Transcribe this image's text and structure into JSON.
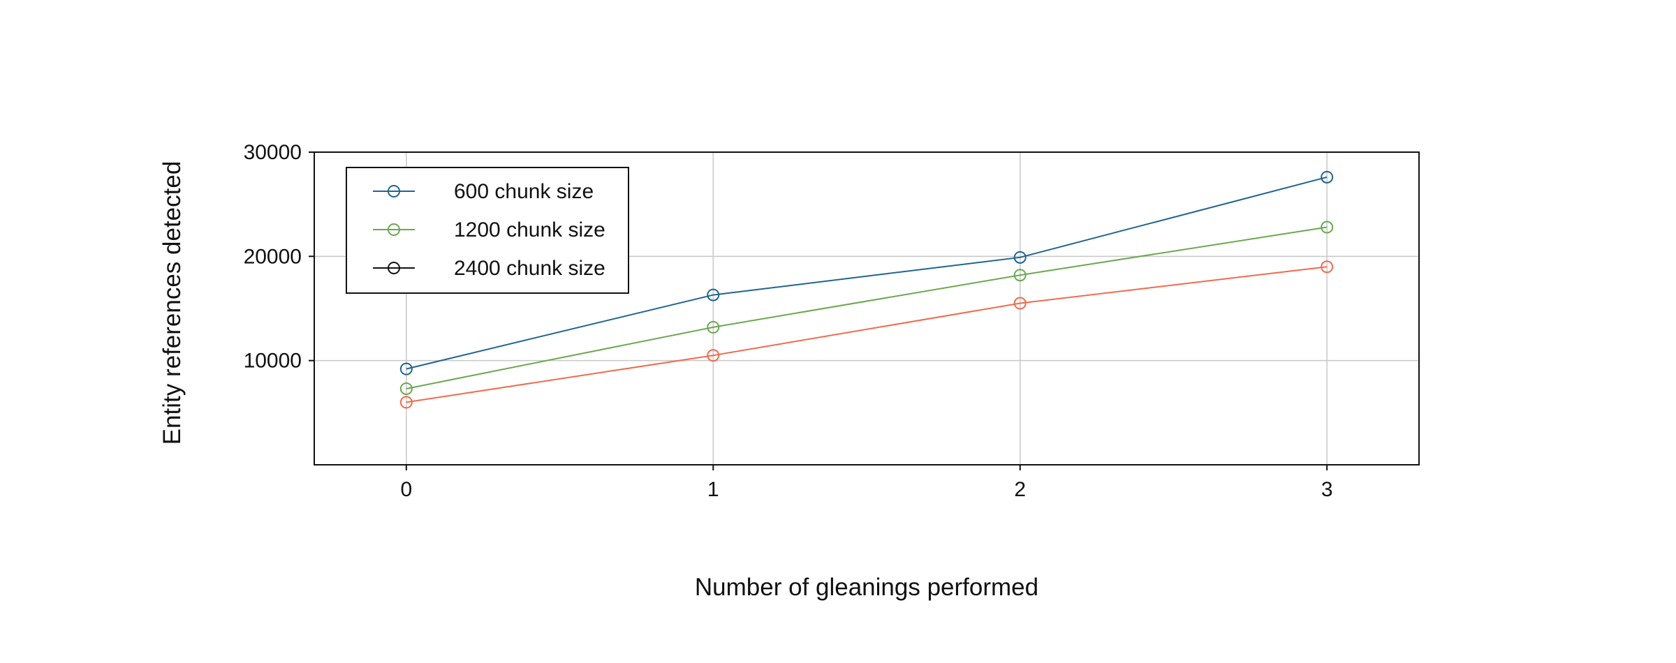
{
  "chart_data": {
    "type": "line",
    "title": "",
    "xlabel": "Number of gleanings performed",
    "ylabel": "Entity references detected",
    "x": [
      0,
      1,
      2,
      3
    ],
    "xlim": [
      -0.3,
      3.3
    ],
    "ylim": [
      0,
      30000
    ],
    "xticks": [
      "0",
      "1",
      "2",
      "3"
    ],
    "yticks": [
      {
        "value": 10000,
        "label": "10000"
      },
      {
        "value": 20000,
        "label": "20000"
      },
      {
        "value": 30000,
        "label": "30000"
      }
    ],
    "grid": true,
    "legend_position": "top-left",
    "series": [
      {
        "name": "600 chunk size",
        "color": "#1f6491",
        "values": [
          9200,
          16300,
          19900,
          27600
        ]
      },
      {
        "name": "1200 chunk size",
        "color": "#6aa84f",
        "values": [
          7300,
          13200,
          18200,
          22800
        ]
      },
      {
        "name": "2400 chunk size",
        "color": "#f26a4b",
        "legend_color": "#111111",
        "values": [
          6000,
          10500,
          15500,
          19000
        ]
      }
    ]
  }
}
